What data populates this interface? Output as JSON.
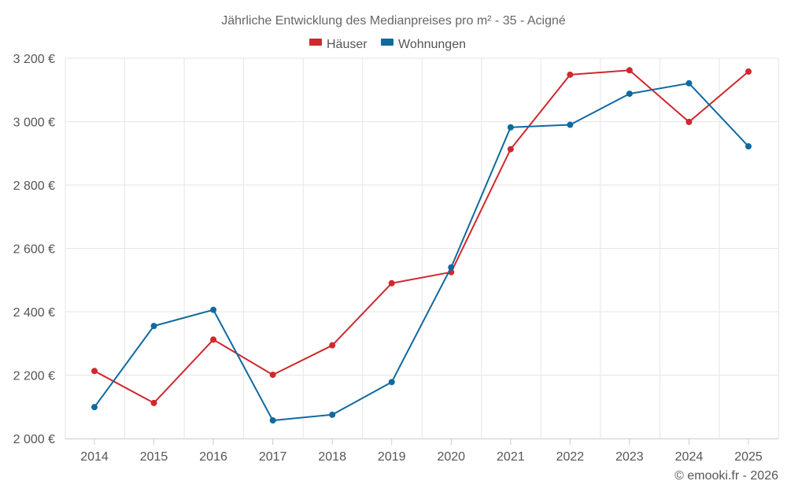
{
  "chart_data": {
    "type": "line",
    "title": "Jährliche Entwicklung des Medianpreises pro m² - 35 - Acigné",
    "categories": [
      "2014",
      "2015",
      "2016",
      "2017",
      "2018",
      "2019",
      "2020",
      "2021",
      "2022",
      "2023",
      "2024",
      "2025"
    ],
    "series": [
      {
        "name": "Häuser",
        "color": "#d0282d",
        "values": [
          2213,
          2112,
          2312,
          2201,
          2294,
          2490,
          2525,
          2913,
          3148,
          3162,
          2999,
          3158
        ]
      },
      {
        "name": "Wohnungen",
        "color": "#0f6aa0",
        "values": [
          2099,
          2355,
          2406,
          2057,
          2075,
          2178,
          2540,
          2982,
          2990,
          3088,
          3121,
          2922
        ]
      }
    ],
    "xlabel": "",
    "ylabel": "",
    "ylim": [
      2000,
      3200
    ],
    "yticks": [
      2000,
      2200,
      2400,
      2600,
      2800,
      3000,
      3200
    ],
    "ytick_labels": [
      "2 000 €",
      "2 200 €",
      "2 400 €",
      "2 600 €",
      "2 800 €",
      "3 000 €",
      "3 200 €"
    ],
    "legend_position": "top-center",
    "grid": true,
    "credits": "© emooki.fr - 2026"
  }
}
